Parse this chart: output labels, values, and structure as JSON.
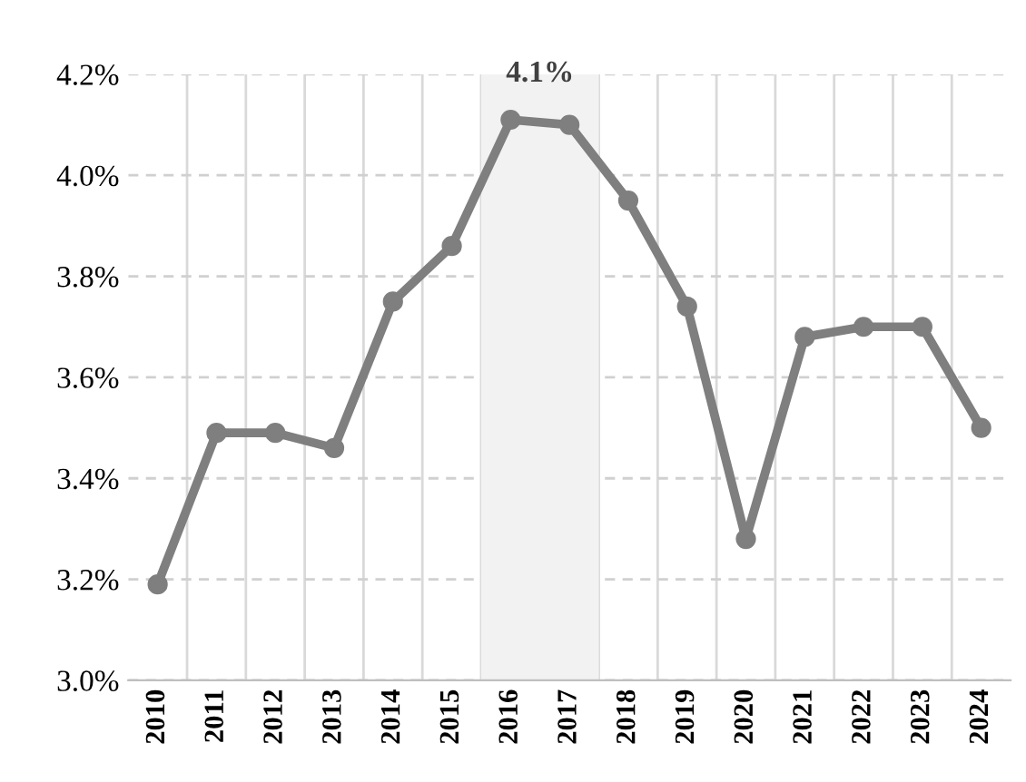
{
  "chart_data": {
    "type": "line",
    "categories": [
      "2010",
      "2011",
      "2012",
      "2013",
      "2014",
      "2015",
      "2016",
      "2017",
      "2018",
      "2019",
      "2020",
      "2021",
      "2022",
      "2023",
      "2024"
    ],
    "series": [
      {
        "color": "#7f7f7f",
        "values": [
          3.19,
          3.49,
          3.49,
          3.46,
          3.75,
          3.86,
          4.11,
          4.1,
          3.95,
          3.74,
          3.28,
          3.68,
          3.7,
          3.7,
          3.5
        ]
      }
    ],
    "ylim": [
      3.0,
      4.2
    ],
    "yticks": [
      {
        "value": 3.0,
        "label": "3.0%"
      },
      {
        "value": 3.2,
        "label": "3.2%"
      },
      {
        "value": 3.4,
        "label": "3.4%"
      },
      {
        "value": 3.6,
        "label": "3.6%"
      },
      {
        "value": 3.8,
        "label": "3.8%"
      },
      {
        "value": 4.0,
        "label": "4.0%"
      },
      {
        "value": 4.2,
        "label": "4.2%"
      }
    ],
    "bands": [
      {
        "axis": "x",
        "from": "2016",
        "to": "2017",
        "label": "4.1%",
        "color": "#f2f2f2"
      }
    ],
    "grid": true,
    "marker": "circle",
    "line_style": "solid"
  }
}
